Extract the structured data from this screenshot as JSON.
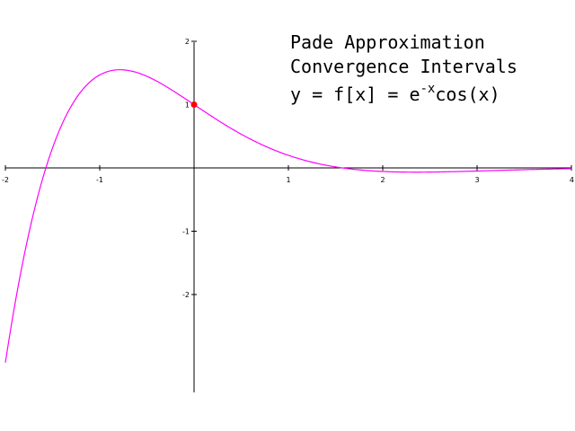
{
  "title": {
    "line1": "Pade Approximation",
    "line2": "Convergence Intervals",
    "line3_prefix": "y = f[x] = e",
    "line3_exponent": "-x",
    "line3_suffix": "cos(x)"
  },
  "colors": {
    "curve": "#ff00ff",
    "point": "#ff0000",
    "axis": "#000000"
  },
  "chart_data": {
    "type": "line",
    "function": "e^(-x) cos(x)",
    "xlim": [
      -2,
      4
    ],
    "ylim": [
      -3.5,
      2
    ],
    "x_ticks": [
      -2,
      -1,
      1,
      2,
      3,
      4
    ],
    "y_ticks": [
      -2,
      -1,
      1,
      2
    ],
    "x_tick_labels": [
      "-2",
      "-1",
      "1",
      "2",
      "3",
      "4"
    ],
    "y_tick_labels": [
      "-2",
      "-1",
      "1",
      "2"
    ],
    "grid": false,
    "series": [
      {
        "x": [
          -2.0,
          -1.75,
          -1.5,
          -1.25,
          -1.0,
          -0.75,
          -0.5,
          -0.25,
          0.0,
          0.25,
          0.5,
          0.75,
          1.0,
          1.25,
          1.5,
          1.75,
          2.0,
          2.25,
          2.5,
          2.75,
          3.0,
          3.25,
          3.5,
          3.75,
          4.0
        ],
        "y": [
          -3.075,
          -1.027,
          0.317,
          1.099,
          1.469,
          1.548,
          1.447,
          1.244,
          1.0,
          0.755,
          0.532,
          0.345,
          0.199,
          0.091,
          0.016,
          -0.031,
          -0.056,
          -0.066,
          -0.066,
          -0.059,
          -0.049,
          -0.039,
          -0.028,
          -0.019,
          -0.012
        ],
        "style": "smooth"
      }
    ],
    "highlight_point": {
      "x": 0,
      "y": 1
    }
  }
}
